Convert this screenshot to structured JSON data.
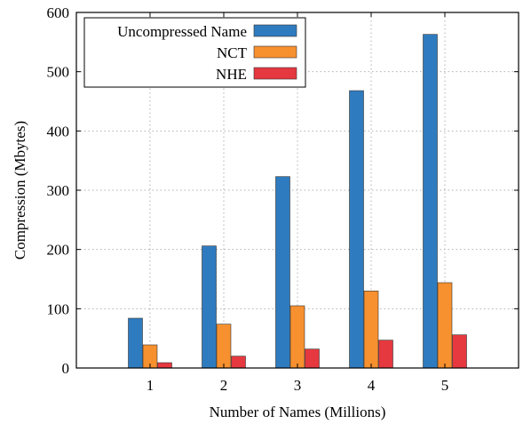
{
  "chart_data": {
    "type": "bar",
    "categories": [
      "1",
      "2",
      "3",
      "4",
      "5"
    ],
    "series": [
      {
        "name": "Uncompressed Name",
        "color": "#2f7bbf",
        "values": [
          84,
          206,
          323,
          468,
          563
        ]
      },
      {
        "name": "NCT",
        "color": "#f7902f",
        "values": [
          39,
          74,
          105,
          130,
          144
        ]
      },
      {
        "name": "NHE",
        "color": "#e5383f",
        "values": [
          9,
          20,
          32,
          47,
          56
        ]
      }
    ],
    "xlabel": "Number of Names (Millions)",
    "ylabel": "Compression (Mbytes)",
    "ylim": [
      0,
      600
    ],
    "yticks": [
      "0",
      "100",
      "200",
      "300",
      "400",
      "500",
      "600"
    ],
    "grid": true,
    "legend_position": "top-left"
  }
}
